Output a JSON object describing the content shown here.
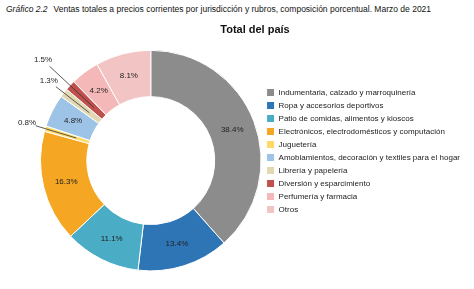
{
  "chart_data": {
    "type": "doughnut",
    "title": "Ventas totales a precios corrientes por jurisdicción y rubros, composición porcentual. Marzo de 2021",
    "subtitle": "Total del país",
    "annotations": [
      "Gráfico 2.2"
    ],
    "categories": [
      "Indumentaria, calzado y marroquinería",
      "Ropa y accesorios deportivos",
      "Patio de comidas, alimentos y kioscos",
      "Electrónicos, electrodomésticos y computación",
      "Juguetería",
      "Amoblamientos, decoración y textiles para el hogar",
      "Librería y papelería",
      "Diversión y esparcimiento",
      "Perfumería y farmacia",
      "Otros"
    ],
    "values": [
      38.4,
      13.4,
      11.1,
      16.3,
      0.8,
      4.8,
      1.3,
      1.5,
      4.2,
      8.1
    ],
    "value_labels": [
      "38.4%",
      "13.4%",
      "11.1%",
      "16.3%",
      "0.8%",
      "4.8%",
      "1.3%",
      "1.5%",
      "4.2%",
      "8.1%"
    ],
    "colors": [
      "#8c8c8c",
      "#2e75b6",
      "#4bacc6",
      "#f5a623",
      "#ffd966",
      "#9dc3e6",
      "#e2d9b3",
      "#c0504d",
      "#f4b8b8",
      "#f2c4c4"
    ],
    "data_labels": true,
    "legend": "right"
  }
}
